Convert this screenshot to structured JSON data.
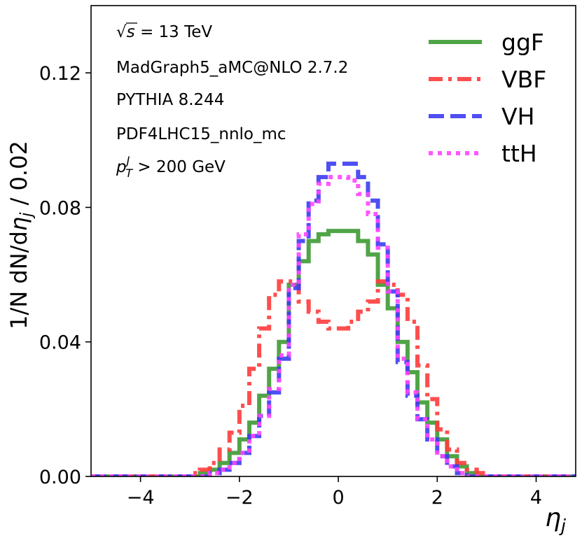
{
  "chart_data": {
    "type": "line",
    "drawstyle": "steps",
    "xlabel": "η_j",
    "ylabel": "1/N dN/dη_j / 0.02",
    "xlim": [
      -5,
      4.8
    ],
    "ylim": [
      0,
      0.14
    ],
    "xticks": [
      -4,
      -2,
      0,
      2,
      4
    ],
    "xtick_labels": [
      "−4",
      "−2",
      "0",
      "2",
      "4"
    ],
    "yticks": [
      0.0,
      0.04,
      0.08,
      0.12
    ],
    "ytick_labels": [
      "0.00",
      "0.04",
      "0.08",
      "0.12"
    ],
    "grid": false,
    "legend_position": "top-right",
    "annotations": [
      {
        "id": "sqrt-s",
        "root": "√",
        "var": "s",
        "text": " = 13 TeV"
      },
      {
        "id": "generator",
        "text": "MadGraph5_aMC@NLO 2.7.2"
      },
      {
        "id": "shower",
        "text": "PYTHIA 8.244"
      },
      {
        "id": "pdf",
        "text": "PDF4LHC15_nnlo_mc"
      },
      {
        "id": "pt-cut",
        "var": "p",
        "sup": "J",
        "sub": "T",
        "text": " > 200 GeV"
      }
    ],
    "bin_edges": [
      -3.2,
      -3.0,
      -2.8,
      -2.6,
      -2.4,
      -2.2,
      -2.0,
      -1.8,
      -1.6,
      -1.4,
      -1.2,
      -1.0,
      -0.8,
      -0.6,
      -0.4,
      -0.2,
      0.0,
      0.2,
      0.4,
      0.6,
      0.8,
      1.0,
      1.2,
      1.4,
      1.6,
      1.8,
      2.0,
      2.2,
      2.4,
      2.6,
      2.8,
      3.0,
      3.2
    ],
    "series": [
      {
        "name": "ggF",
        "color": "#3d9a33",
        "linestyle": "solid",
        "values": [
          0.0,
          0.0,
          0.001,
          0.002,
          0.004,
          0.007,
          0.011,
          0.016,
          0.024,
          0.032,
          0.04,
          0.057,
          0.064,
          0.07,
          0.072,
          0.073,
          0.073,
          0.073,
          0.07,
          0.066,
          0.057,
          0.05,
          0.04,
          0.031,
          0.022,
          0.016,
          0.011,
          0.006,
          0.003,
          0.001,
          0.0,
          0.0
        ]
      },
      {
        "name": "VBF",
        "color": "#ff3b3b",
        "linestyle": "dashdot",
        "values": [
          0.0,
          0.001,
          0.002,
          0.004,
          0.008,
          0.013,
          0.021,
          0.032,
          0.044,
          0.054,
          0.058,
          0.058,
          0.052,
          0.049,
          0.046,
          0.044,
          0.044,
          0.046,
          0.049,
          0.052,
          0.058,
          0.057,
          0.054,
          0.046,
          0.033,
          0.023,
          0.014,
          0.008,
          0.004,
          0.002,
          0.001,
          0.0
        ]
      },
      {
        "name": "VH",
        "color": "#3c3cf2",
        "linestyle": "dashed",
        "values": [
          0.0,
          0.0,
          0.0,
          0.001,
          0.002,
          0.004,
          0.007,
          0.012,
          0.018,
          0.025,
          0.035,
          0.056,
          0.07,
          0.082,
          0.089,
          0.093,
          0.093,
          0.093,
          0.089,
          0.082,
          0.069,
          0.055,
          0.034,
          0.024,
          0.017,
          0.011,
          0.006,
          0.003,
          0.001,
          0.0,
          0.0,
          0.0
        ]
      },
      {
        "name": "ttH",
        "color": "#ff44ff",
        "linestyle": "dotted",
        "values": [
          0.0,
          0.0,
          0.0,
          0.001,
          0.002,
          0.004,
          0.007,
          0.012,
          0.018,
          0.026,
          0.036,
          0.057,
          0.072,
          0.081,
          0.087,
          0.089,
          0.089,
          0.088,
          0.084,
          0.078,
          0.068,
          0.055,
          0.035,
          0.025,
          0.017,
          0.011,
          0.006,
          0.003,
          0.001,
          0.0,
          0.0,
          0.0
        ]
      }
    ]
  }
}
